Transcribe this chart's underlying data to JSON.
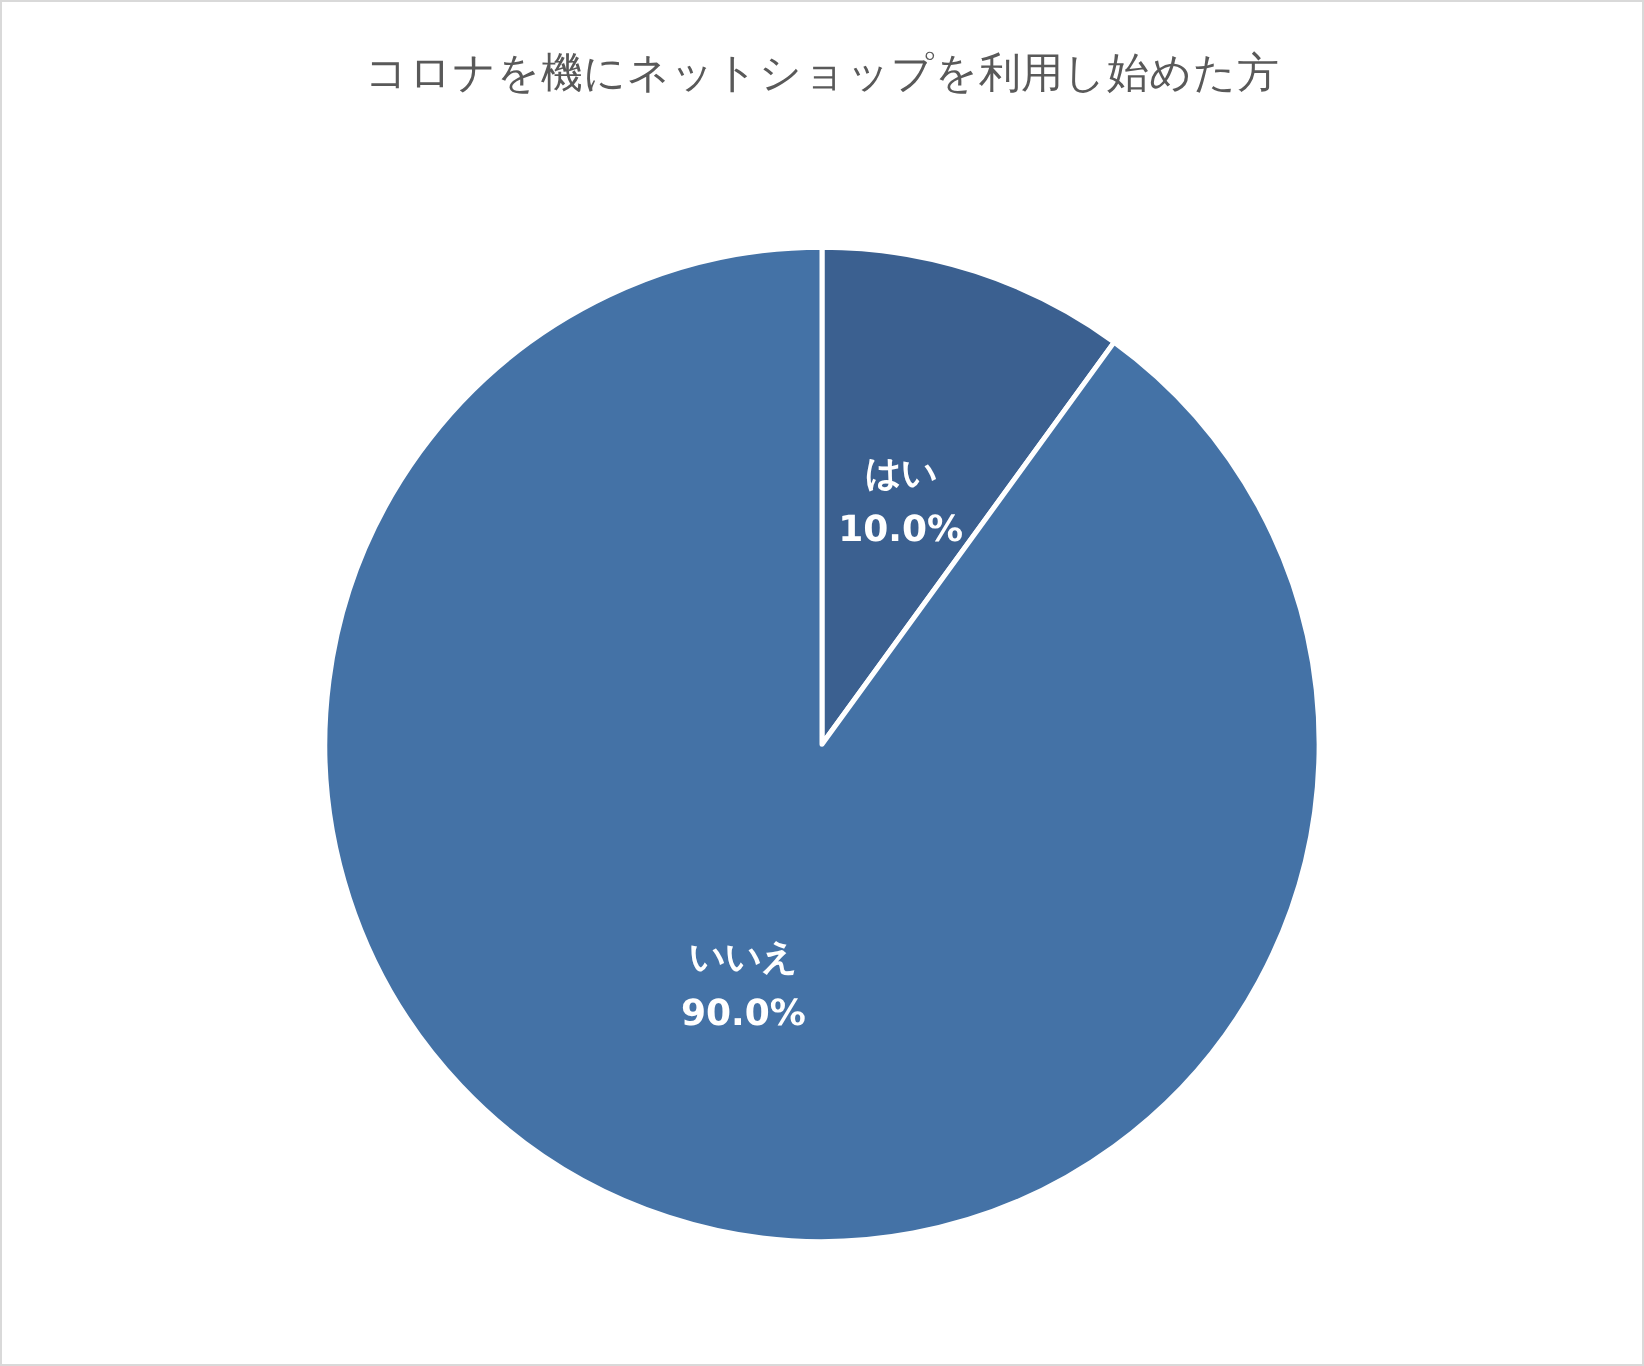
{
  "chart_data": {
    "type": "pie",
    "title": "コロナを機にネットショップを利用し始めた方",
    "categories": [
      "はい",
      "いいえ"
    ],
    "values": [
      10,
      90
    ],
    "colors": [
      "#3b6090",
      "#4472a6"
    ],
    "value_labels": [
      "10.0%",
      "90.0%"
    ],
    "legend": false
  }
}
